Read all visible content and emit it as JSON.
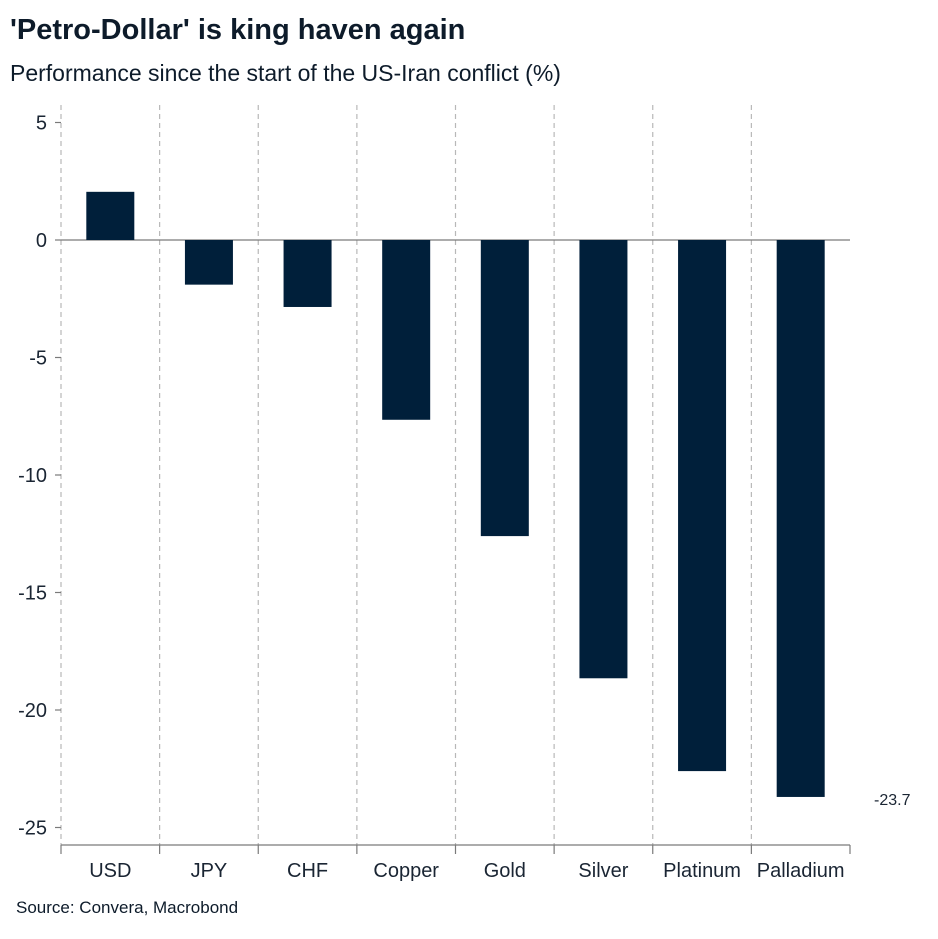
{
  "chart_data": {
    "type": "bar",
    "title": "'Petro-Dollar' is king haven again",
    "subtitle": "Performance since the start of the US-Iran conflict (%)",
    "categories": [
      "USD",
      "JPY",
      "CHF",
      "Copper",
      "Gold",
      "Silver",
      "Platinum",
      "Palladium"
    ],
    "values": [
      2.05,
      -1.9,
      -2.85,
      -7.65,
      -12.6,
      -18.65,
      -22.6,
      -23.7
    ],
    "yticks": [
      5,
      0,
      -5,
      -10,
      -15,
      -20,
      -25
    ],
    "ylim": [
      -25.5,
      5
    ],
    "data_labels": [
      {
        "category": "Palladium",
        "text": "-23.7"
      }
    ],
    "grid": "vertical dashed separators",
    "bar_color": "#001f3a",
    "source": "Source: Convera, Macrobond"
  }
}
